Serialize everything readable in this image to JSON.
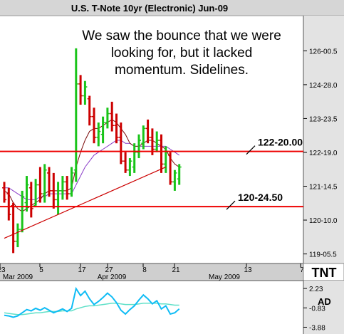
{
  "chart_data": {
    "type": "ohlc",
    "title": "U.S. T-Note 10yr (Electronic) Jun-09",
    "annotation_lines": [
      "We saw the bounce that we were",
      "looking for, but it lacked",
      "momentum.  Sidelines."
    ],
    "y_tick_labels": [
      "126-00.5",
      "124-28.0",
      "123-23.5",
      "122-19.0",
      "121-14.5",
      "120-10.0",
      "119-05.5"
    ],
    "y_tick_values": [
      126.0156,
      124.875,
      123.7344,
      122.5938,
      121.4531,
      120.3125,
      119.1719
    ],
    "ylim": [
      118.85,
      127.2
    ],
    "x_tick_labels": [
      "23",
      "5",
      "17",
      "27",
      "8",
      "21",
      "13",
      "7"
    ],
    "x_month_labels": [
      "Mar 2009",
      "Apr 2009",
      "May 2009"
    ],
    "logo_text": "TNT",
    "levels": [
      {
        "label": "122-20.00",
        "value": 122.625
      },
      {
        "label": "120-24.50",
        "value": 120.766
      }
    ],
    "bars": [
      {
        "high": 121.6,
        "low": 120.9,
        "open": 121.4,
        "close": 121.0
      },
      {
        "high": 121.4,
        "low": 120.3,
        "open": 121.2,
        "close": 120.5
      },
      {
        "high": 120.9,
        "low": 119.2,
        "open": 120.8,
        "close": 119.6
      },
      {
        "high": 120.2,
        "low": 119.4,
        "open": 119.6,
        "close": 120.0
      },
      {
        "high": 121.3,
        "low": 119.9,
        "open": 120.0,
        "close": 121.1
      },
      {
        "high": 121.8,
        "low": 120.6,
        "open": 120.9,
        "close": 121.5
      },
      {
        "high": 121.6,
        "low": 120.4,
        "open": 121.4,
        "close": 120.7
      },
      {
        "high": 121.7,
        "low": 120.8,
        "open": 120.8,
        "close": 121.5
      },
      {
        "high": 122.1,
        "low": 120.9,
        "open": 121.5,
        "close": 121.2
      },
      {
        "high": 122.2,
        "low": 120.9,
        "open": 121.2,
        "close": 122.0
      },
      {
        "high": 122.1,
        "low": 121.1,
        "open": 121.9,
        "close": 121.3
      },
      {
        "high": 121.9,
        "low": 120.7,
        "open": 121.3,
        "close": 121.0
      },
      {
        "high": 121.6,
        "low": 120.5,
        "open": 121.0,
        "close": 121.3
      },
      {
        "high": 121.8,
        "low": 121.0,
        "open": 121.3,
        "close": 121.6
      },
      {
        "high": 121.8,
        "low": 121.0,
        "open": 121.6,
        "close": 121.2
      },
      {
        "high": 122.1,
        "low": 121.1,
        "open": 121.2,
        "close": 121.9
      },
      {
        "high": 126.1,
        "low": 121.6,
        "open": 122.0,
        "close": 124.9
      },
      {
        "high": 125.2,
        "low": 124.2,
        "open": 124.9,
        "close": 124.5
      },
      {
        "high": 125.0,
        "low": 124.2,
        "open": 124.5,
        "close": 124.8
      },
      {
        "high": 124.5,
        "low": 123.5,
        "open": 124.4,
        "close": 123.8
      },
      {
        "high": 124.1,
        "low": 122.9,
        "open": 123.8,
        "close": 123.1
      },
      {
        "high": 123.6,
        "low": 122.8,
        "open": 123.1,
        "close": 123.3
      },
      {
        "high": 123.8,
        "low": 122.9,
        "open": 123.2,
        "close": 123.6
      },
      {
        "high": 124.1,
        "low": 123.4,
        "open": 123.6,
        "close": 123.9
      },
      {
        "high": 124.3,
        "low": 123.3,
        "open": 123.9,
        "close": 123.5
      },
      {
        "high": 123.9,
        "low": 122.9,
        "open": 123.5,
        "close": 123.1
      },
      {
        "high": 123.6,
        "low": 122.2,
        "open": 123.1,
        "close": 122.3
      },
      {
        "high": 122.6,
        "low": 121.9,
        "open": 122.3,
        "close": 122.0
      },
      {
        "high": 122.4,
        "low": 121.8,
        "open": 122.0,
        "close": 122.3
      },
      {
        "high": 122.9,
        "low": 121.9,
        "open": 122.1,
        "close": 122.6
      },
      {
        "high": 123.2,
        "low": 122.4,
        "open": 122.6,
        "close": 123.0
      },
      {
        "high": 123.5,
        "low": 122.7,
        "open": 122.9,
        "close": 123.4
      },
      {
        "high": 123.7,
        "low": 122.9,
        "open": 123.4,
        "close": 123.1
      },
      {
        "high": 123.4,
        "low": 122.5,
        "open": 123.1,
        "close": 122.7
      },
      {
        "high": 123.3,
        "low": 122.6,
        "open": 122.7,
        "close": 123.0
      },
      {
        "high": 123.2,
        "low": 121.9,
        "open": 123.0,
        "close": 122.2
      },
      {
        "high": 122.8,
        "low": 121.9,
        "open": 122.2,
        "close": 122.6
      },
      {
        "high": 122.6,
        "low": 121.5,
        "open": 122.5,
        "close": 121.6
      },
      {
        "high": 122.0,
        "low": 121.3,
        "open": 121.6,
        "close": 121.9
      },
      {
        "high": 122.2,
        "low": 121.5,
        "open": 121.7,
        "close": 122.1
      }
    ],
    "moving_average_1": [
      121.3,
      121.2,
      120.9,
      120.7,
      120.6,
      120.7,
      120.8,
      120.9,
      121.0,
      121.2,
      121.3,
      121.3,
      121.3,
      121.3,
      121.3,
      121.4,
      122.1,
      122.6,
      123.0,
      123.3,
      123.4,
      123.4,
      123.5,
      123.6,
      123.7,
      123.6,
      123.4,
      123.2,
      122.9,
      122.8,
      122.8,
      122.9,
      123.0,
      123.0,
      122.9,
      122.8,
      122.7,
      122.4,
      122.2,
      122.1
    ],
    "moving_average_2": [
      121.4,
      121.4,
      121.3,
      121.2,
      121.1,
      121.0,
      121.0,
      121.0,
      121.1,
      121.1,
      121.2,
      121.2,
      121.2,
      121.2,
      121.2,
      121.2,
      121.5,
      121.8,
      122.1,
      122.3,
      122.5,
      122.6,
      122.7,
      122.8,
      122.9,
      123.0,
      123.0,
      122.9,
      122.9,
      122.8,
      122.8,
      122.8,
      122.8,
      122.8,
      122.8,
      122.8,
      122.8,
      122.7,
      122.6,
      122.5
    ],
    "trendline": {
      "from": {
        "bar": 0,
        "value": 119.7
      },
      "to": {
        "bar": 36,
        "value": 122.1
      }
    },
    "indicator": {
      "name": "AD",
      "tick_labels": [
        "2.23",
        "-0.83",
        "-3.88"
      ],
      "ylim": [
        -4.5,
        2.8
      ],
      "current_label": "-0.83",
      "series_main": [
        -2.0,
        -2.1,
        -2.3,
        -2.1,
        -1.6,
        -1.1,
        -1.3,
        -0.9,
        -1.2,
        -0.8,
        -1.2,
        -1.6,
        -1.3,
        -1.0,
        -1.4,
        -0.9,
        2.2,
        1.1,
        1.8,
        0.6,
        -0.3,
        0.2,
        0.8,
        1.5,
        0.9,
        0.0,
        -1.2,
        -1.8,
        -1.1,
        -0.5,
        0.4,
        1.2,
        0.6,
        -0.2,
        0.3,
        -1.0,
        -0.5,
        -1.8,
        -1.6,
        -1.0
      ],
      "series_signal": [
        -1.6,
        -1.7,
        -1.8,
        -1.9,
        -1.9,
        -1.8,
        -1.7,
        -1.6,
        -1.6,
        -1.5,
        -1.4,
        -1.4,
        -1.4,
        -1.3,
        -1.3,
        -1.3,
        -1.0,
        -0.8,
        -0.6,
        -0.5,
        -0.5,
        -0.4,
        -0.3,
        -0.2,
        -0.1,
        -0.1,
        -0.2,
        -0.3,
        -0.3,
        -0.3,
        -0.2,
        -0.1,
        -0.1,
        -0.1,
        -0.1,
        -0.2,
        -0.2,
        -0.3,
        -0.4,
        -0.4
      ]
    },
    "colors": {
      "up": "#19c419",
      "down": "#cc0000",
      "level_line": "#ee0000",
      "trendline": "#cc0000",
      "ma1": "#7a0a0a",
      "ma2": "#8a3cc8",
      "indicator_main": "#0fbcf5",
      "indicator_signal": "#5fe0c8",
      "title_bar": "#d6d6d6",
      "axis_bar": "#cfcfcf"
    },
    "grid": false
  }
}
